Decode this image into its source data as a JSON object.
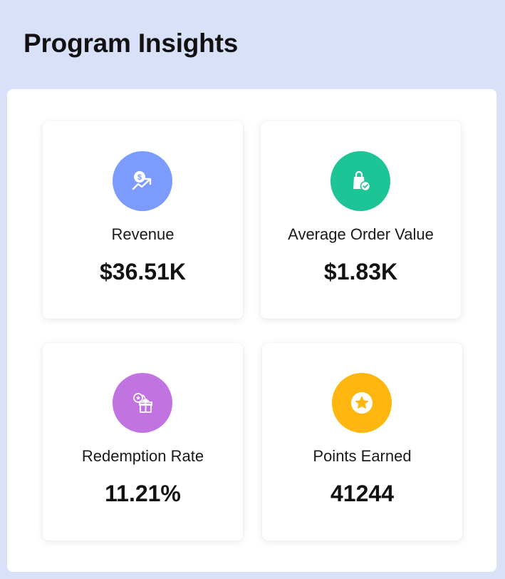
{
  "header": {
    "title": "Program Insights"
  },
  "metrics": [
    {
      "label": "Revenue",
      "value": "$36.51K",
      "icon": "revenue-icon",
      "color": "#7b9bff"
    },
    {
      "label": "Average Order Value",
      "value": "$1.83K",
      "icon": "shopping-bag-check-icon",
      "color": "#1dc596"
    },
    {
      "label": "Redemption Rate",
      "value": "11.21%",
      "icon": "gift-redeem-icon",
      "color": "#c173e2"
    },
    {
      "label": "Points Earned",
      "value": "41244",
      "icon": "star-badge-icon",
      "color": "#ffb70f"
    }
  ]
}
